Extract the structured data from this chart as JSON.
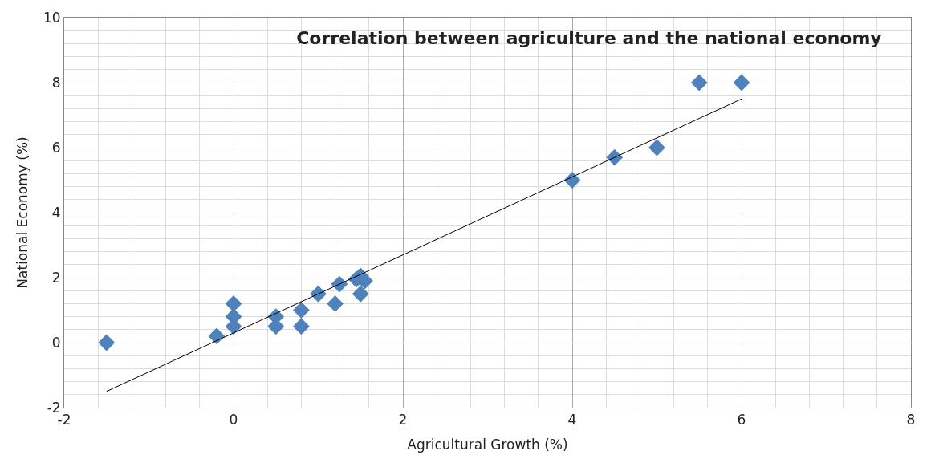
{
  "chart_data": {
    "type": "scatter",
    "title": "Correlation between agriculture and the national economy",
    "xlabel": "Agricultural Growth (%)",
    "ylabel": "National Economy (%)",
    "x": [
      -1.5,
      -0.2,
      0,
      0,
      0,
      0.5,
      0.5,
      0.8,
      0.8,
      1.0,
      1.2,
      1.25,
      1.45,
      1.5,
      1.55,
      1.5,
      4,
      4.5,
      5,
      5.5,
      6
    ],
    "series": [
      {
        "color": "#4f81bd",
        "marker": "diamond",
        "values": [
          0,
          0.2,
          1.2,
          0.8,
          0.5,
          0.8,
          0.5,
          1.0,
          0.5,
          1.5,
          1.2,
          1.8,
          1.95,
          2.05,
          1.9,
          1.5,
          5,
          5.7,
          6,
          8,
          8
        ]
      },
      {
        "type": "line",
        "color": "#000000",
        "marker": "none",
        "x": [
          -1.5,
          6
        ],
        "values": [
          -1.5,
          7.5
        ]
      }
    ],
    "xlim": [
      -2,
      8
    ],
    "xticks": [
      -2,
      0,
      2,
      4,
      6,
      8
    ],
    "ylim": [
      -2,
      10
    ],
    "yticks": [
      -2,
      0,
      2,
      4,
      6,
      8,
      10
    ],
    "grid": true
  }
}
